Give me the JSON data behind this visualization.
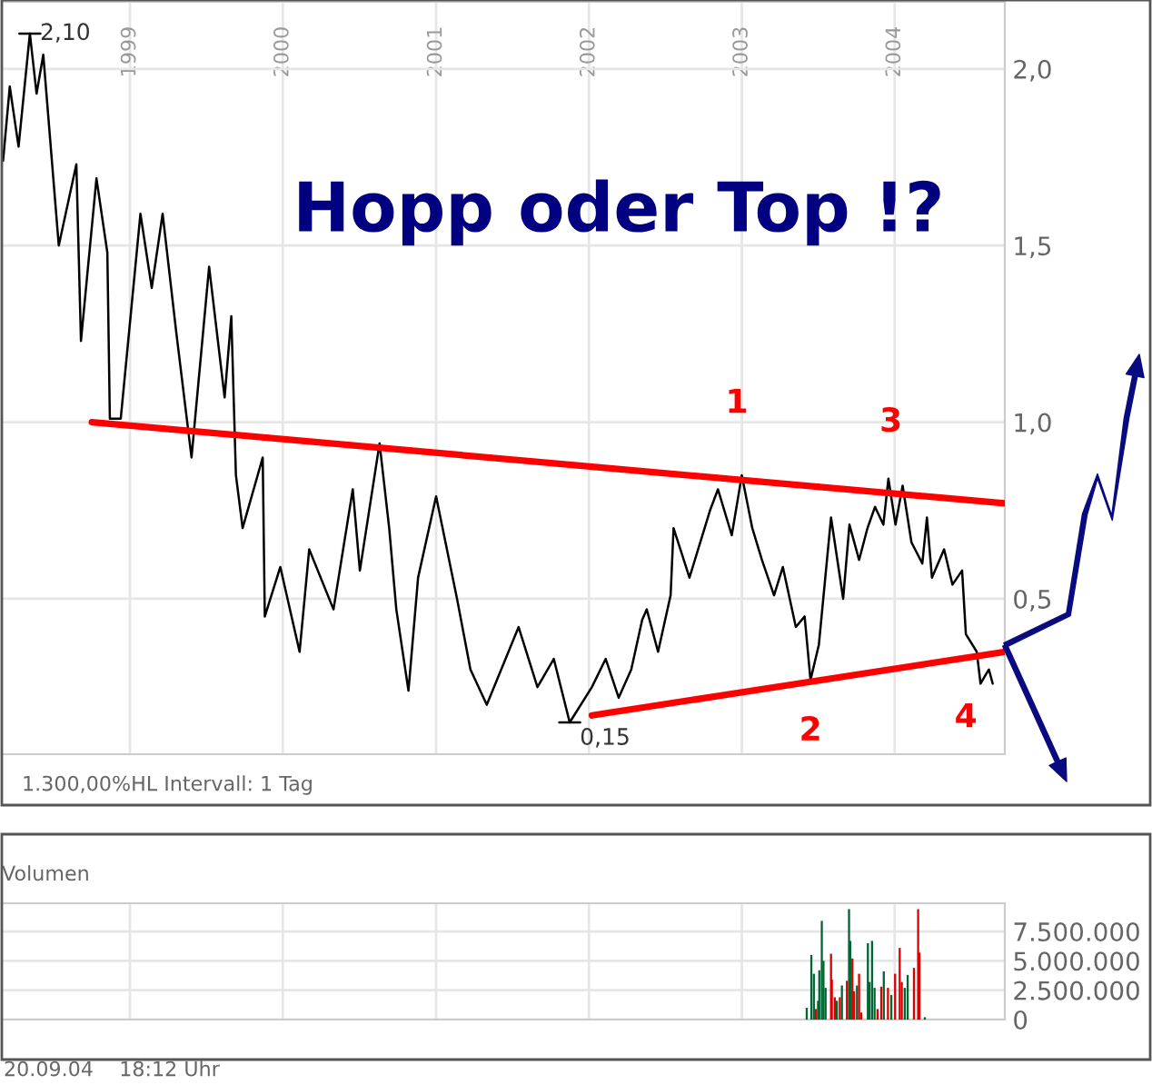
{
  "chart_data": [
    {
      "type": "line",
      "title": "Hopp oder Top !?",
      "xlim": [
        "1998-03-01",
        "2004-09-20"
      ],
      "ylim": [
        0.06,
        2.19
      ],
      "xticks": [
        "1999",
        "2000",
        "2001",
        "2002",
        "2003",
        "2004"
      ],
      "yticks": [
        {
          "value": 0.5,
          "label": "0,5"
        },
        {
          "value": 1.0,
          "label": "1,0"
        },
        {
          "value": 1.5,
          "label": "1,5"
        },
        {
          "value": 2.0,
          "label": "2,0"
        }
      ],
      "grid": true,
      "marker": "none",
      "line_style": "solid",
      "series": [
        {
          "color": "#000000",
          "x": [
            "1998-03-04",
            "1998-03-20",
            "1998-04-10",
            "1998-05-07",
            "1998-05-23",
            "1998-06-08",
            "1998-07-15",
            "1998-08-26",
            "1998-09-06",
            "1998-10-13",
            "1998-11-08",
            "1998-11-14",
            "1998-12-10",
            "1999-01-26",
            "1999-02-22",
            "1999-03-20",
            "1999-04-21",
            "1999-05-28",
            "1999-07-09",
            "1999-08-15",
            "1999-08-31",
            "1999-09-11",
            "1999-09-27",
            "1999-11-14",
            "1999-11-19",
            "1999-12-26",
            "2000-02-10",
            "2000-03-04",
            "2000-05-01",
            "2000-06-16",
            "2000-07-03",
            "2000-08-19",
            "2000-09-11",
            "2000-09-28",
            "2000-10-27",
            "2000-11-19",
            "2001-01-01",
            "2001-02-20",
            "2001-03-24",
            "2001-05-02",
            "2001-07-17",
            "2001-08-31",
            "2001-10-09",
            "2001-11-16",
            "2002-01-08",
            "2002-02-10",
            "2002-03-13",
            "2002-04-12",
            "2002-05-08",
            "2002-05-19",
            "2002-06-15",
            "2002-07-15",
            "2002-07-22",
            "2002-08-29",
            "2002-10-17",
            "2002-11-05",
            "2002-12-08",
            "2003-01-01",
            "2003-01-26",
            "2003-02-18",
            "2003-03-19",
            "2003-04-09",
            "2003-05-10",
            "2003-05-31",
            "2003-06-14",
            "2003-07-04",
            "2003-08-02",
            "2003-08-31",
            "2003-09-15",
            "2003-10-08",
            "2003-10-28",
            "2003-11-15",
            "2003-12-05",
            "2003-12-17",
            "2004-01-03",
            "2004-01-20",
            "2004-02-10",
            "2004-03-07",
            "2004-03-18",
            "2004-03-30",
            "2004-04-28",
            "2004-05-18",
            "2004-06-10",
            "2004-06-19",
            "2004-07-15",
            "2004-07-24",
            "2004-08-13",
            "2004-08-22"
          ],
          "values": [
            1.74,
            1.95,
            1.78,
            2.1,
            1.93,
            2.04,
            1.5,
            1.73,
            1.23,
            1.69,
            1.48,
            1.01,
            1.01,
            1.59,
            1.38,
            1.59,
            1.26,
            0.9,
            1.44,
            1.07,
            1.3,
            0.85,
            0.7,
            0.9,
            0.45,
            0.59,
            0.35,
            0.64,
            0.47,
            0.81,
            0.58,
            0.94,
            0.7,
            0.47,
            0.24,
            0.56,
            0.79,
            0.5,
            0.3,
            0.2,
            0.42,
            0.25,
            0.33,
            0.15,
            0.25,
            0.33,
            0.22,
            0.3,
            0.44,
            0.47,
            0.35,
            0.51,
            0.7,
            0.56,
            0.75,
            0.81,
            0.68,
            0.85,
            0.7,
            0.61,
            0.51,
            0.59,
            0.42,
            0.45,
            0.27,
            0.37,
            0.73,
            0.5,
            0.71,
            0.61,
            0.7,
            0.76,
            0.71,
            0.84,
            0.71,
            0.82,
            0.66,
            0.6,
            0.73,
            0.56,
            0.64,
            0.54,
            0.58,
            0.4,
            0.35,
            0.26,
            0.3,
            0.26
          ]
        },
        {
          "color": "#ff0000",
          "x": [
            "1998-10-02",
            "2004-09-20"
          ],
          "values": [
            1.0,
            0.77
          ]
        },
        {
          "color": "#ff0000",
          "x": [
            "2002-01-08",
            "2004-09-20"
          ],
          "values": [
            0.17,
            0.35
          ]
        }
      ],
      "annotations": [
        {
          "text": "2,10",
          "x": "1998-05-07",
          "y": 2.1
        },
        {
          "text": "0,15",
          "x": "2001-11-16",
          "y": 0.15
        },
        {
          "text": "1",
          "x": "2003-01-01",
          "y": 0.85
        },
        {
          "text": "2",
          "x": "2003-06-14",
          "y": 0.27
        },
        {
          "text": "3",
          "x": "2003-12-17",
          "y": 0.84
        },
        {
          "text": "4",
          "x": "2004-06-19",
          "y": 0.35
        },
        "1.300,00%HL Intervall: 1 Tag"
      ]
    },
    {
      "type": "bar",
      "title": "Volumen",
      "xlim": [
        "1998-03-01",
        "2004-09-20"
      ],
      "ylim": [
        0,
        9900000
      ],
      "xticks": [
        {
          "value": "1999",
          "label": null
        },
        {
          "value": "2000",
          "label": null
        },
        {
          "value": "2001",
          "label": null
        },
        {
          "value": "2002",
          "label": null
        },
        {
          "value": "2003",
          "label": null
        },
        {
          "value": "2004",
          "label": null
        }
      ],
      "yticks": [
        0,
        {
          "value": 2500000,
          "label": "2.500.000"
        },
        {
          "value": 5000000,
          "label": "5.000.000"
        },
        {
          "value": 7500000,
          "label": "7.500.000"
        }
      ],
      "tick_labels": "y",
      "grid": true,
      "x": [
        "2003-06-05",
        "2003-06-16",
        "2003-06-22",
        "2003-06-27",
        "2003-07-02",
        "2003-07-05",
        "2003-07-11",
        "2003-07-15",
        "2003-07-20",
        "2003-08-02",
        "2003-08-04",
        "2003-08-11",
        "2003-08-16",
        "2003-08-23",
        "2003-08-28",
        "2003-09-09",
        "2003-09-14",
        "2003-09-17",
        "2003-09-22",
        "2003-09-26",
        "2003-10-03",
        "2003-10-08",
        "2003-10-13",
        "2003-10-29",
        "2003-11-02",
        "2003-11-08",
        "2003-11-14",
        "2003-11-21",
        "2003-11-30",
        "2003-12-06",
        "2003-12-16",
        "2003-12-24",
        "2004-01-02",
        "2004-01-13",
        "2004-01-18",
        "2004-01-25",
        "2004-02-01",
        "2004-02-16",
        "2004-02-26",
        "2004-02-29",
        "2004-03-13"
      ],
      "values": [
        1000000,
        5500000,
        3900000,
        900000,
        1600000,
        4200000,
        8400000,
        5000000,
        2700000,
        5600000,
        3400000,
        1900000,
        1600000,
        1900000,
        2900000,
        3300000,
        9400000,
        6700000,
        5200000,
        2400000,
        2900000,
        3900000,
        600000,
        6500000,
        3200000,
        6700000,
        2700000,
        900000,
        2800000,
        4100000,
        2700000,
        2100000,
        3900000,
        6100000,
        3200000,
        2700000,
        3800000,
        4400000,
        9400000,
        5700000,
        200000
      ],
      "colors": [
        "#006633",
        "#006633",
        "#006633",
        "#dd0000",
        "#006633",
        "#006633",
        "#006633",
        "#006633",
        "#006633",
        "#dd0000",
        "#dd0000",
        "#dd0000",
        "#006633",
        "#dd0000",
        "#006633",
        "#dd0000",
        "#006633",
        "#006633",
        "#dd0000",
        "#dd0000",
        "#006633",
        "#dd0000",
        "#dd0000",
        "#006633",
        "#006633",
        "#006633",
        "#006633",
        "#dd0000",
        "#dd0000",
        "#006633",
        "#dd0000",
        "#006633",
        "#dd0000",
        "#dd0000",
        "#dd0000",
        "#006633",
        "#006633",
        "#dd0000",
        "#dd0000",
        "#dd0000",
        "#006633"
      ],
      "annotations": [
        "20.09.04    18:12 Uhr"
      ]
    }
  ]
}
